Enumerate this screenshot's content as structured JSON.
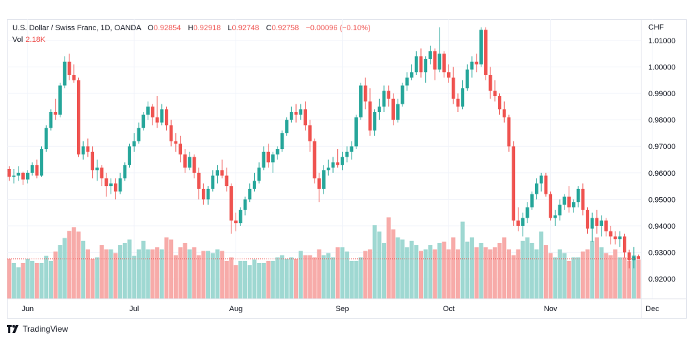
{
  "legend": {
    "symbol": "U.S. Dollar / Swiss Franc, 1D, OANDA",
    "o_label": "O",
    "o_value": "0.92854",
    "h_label": "H",
    "h_value": "0.92918",
    "l_label": "L",
    "l_value": "0.92748",
    "c_label": "C",
    "c_value": "0.92758",
    "change": "−0.00096 (−0.10%)",
    "vol_label": "Vol",
    "vol_value": "2.18K"
  },
  "currency": "CHF",
  "brand": "TradingView",
  "colors": {
    "up": "#26a69a",
    "down": "#ef5350",
    "up_vol": "#9fd8d2",
    "down_vol": "#f7aba9",
    "grid": "#f0f3fa"
  },
  "chart_data": {
    "type": "candlestick",
    "y_ticks": [
      "0.92000",
      "0.93000",
      "0.94000",
      "0.95000",
      "0.96000",
      "0.97000",
      "0.98000",
      "0.99000",
      "1.00000",
      "1.01000"
    ],
    "ylim": [
      0.9125,
      1.0175
    ],
    "x_ticks": [
      "Jun",
      "Jul",
      "Aug",
      "Sep",
      "Oct",
      "Nov",
      "Dec"
    ],
    "x_tick_index": [
      4,
      27,
      49,
      72,
      95,
      117,
      139
    ],
    "last_close": 0.92758,
    "ohlc": [
      [
        0.9615,
        0.9625,
        0.957,
        0.9585
      ],
      [
        0.9585,
        0.9615,
        0.956,
        0.959
      ],
      [
        0.959,
        0.9625,
        0.957,
        0.96
      ],
      [
        0.96,
        0.9605,
        0.9555,
        0.9575
      ],
      [
        0.9575,
        0.961,
        0.956,
        0.96
      ],
      [
        0.96,
        0.964,
        0.959,
        0.963
      ],
      [
        0.963,
        0.965,
        0.958,
        0.959
      ],
      [
        0.959,
        0.97,
        0.9585,
        0.969
      ],
      [
        0.969,
        0.978,
        0.968,
        0.977
      ],
      [
        0.977,
        0.984,
        0.976,
        0.983
      ],
      [
        0.983,
        0.988,
        0.98,
        0.982
      ],
      [
        0.982,
        0.994,
        0.981,
        0.993
      ],
      [
        0.993,
        1.004,
        0.992,
        1.002
      ],
      [
        1.002,
        1.005,
        0.995,
        0.997
      ],
      [
        0.997,
        1.001,
        0.994,
        0.995
      ],
      [
        0.995,
        0.996,
        0.966,
        0.967
      ],
      [
        0.967,
        0.972,
        0.965,
        0.97
      ],
      [
        0.97,
        0.973,
        0.966,
        0.968
      ],
      [
        0.968,
        0.97,
        0.958,
        0.961
      ],
      [
        0.961,
        0.965,
        0.957,
        0.962
      ],
      [
        0.962,
        0.963,
        0.955,
        0.958
      ],
      [
        0.958,
        0.96,
        0.951,
        0.955
      ],
      [
        0.955,
        0.958,
        0.952,
        0.956
      ],
      [
        0.956,
        0.958,
        0.95,
        0.953
      ],
      [
        0.953,
        0.96,
        0.952,
        0.958
      ],
      [
        0.958,
        0.964,
        0.957,
        0.963
      ],
      [
        0.963,
        0.971,
        0.962,
        0.97
      ],
      [
        0.97,
        0.975,
        0.968,
        0.972
      ],
      [
        0.972,
        0.979,
        0.971,
        0.977
      ],
      [
        0.977,
        0.983,
        0.976,
        0.982
      ],
      [
        0.982,
        0.987,
        0.98,
        0.985
      ],
      [
        0.985,
        0.986,
        0.978,
        0.981
      ],
      [
        0.981,
        0.989,
        0.977,
        0.979
      ],
      [
        0.979,
        0.986,
        0.978,
        0.984
      ],
      [
        0.984,
        0.985,
        0.976,
        0.978
      ],
      [
        0.978,
        0.98,
        0.97,
        0.972
      ],
      [
        0.972,
        0.975,
        0.968,
        0.971
      ],
      [
        0.971,
        0.974,
        0.964,
        0.967
      ],
      [
        0.967,
        0.969,
        0.96,
        0.962
      ],
      [
        0.962,
        0.968,
        0.961,
        0.966
      ],
      [
        0.966,
        0.967,
        0.958,
        0.96
      ],
      [
        0.96,
        0.962,
        0.95,
        0.954
      ],
      [
        0.954,
        0.956,
        0.948,
        0.95
      ],
      [
        0.95,
        0.955,
        0.948,
        0.954
      ],
      [
        0.954,
        0.961,
        0.953,
        0.959
      ],
      [
        0.959,
        0.963,
        0.956,
        0.961
      ],
      [
        0.961,
        0.965,
        0.958,
        0.959
      ],
      [
        0.959,
        0.962,
        0.953,
        0.955
      ],
      [
        0.955,
        0.956,
        0.937,
        0.942
      ],
      [
        0.942,
        0.945,
        0.938,
        0.941
      ],
      [
        0.941,
        0.947,
        0.94,
        0.946
      ],
      [
        0.946,
        0.951,
        0.944,
        0.95
      ],
      [
        0.95,
        0.956,
        0.949,
        0.954
      ],
      [
        0.954,
        0.96,
        0.953,
        0.957
      ],
      [
        0.957,
        0.964,
        0.956,
        0.962
      ],
      [
        0.962,
        0.97,
        0.961,
        0.968
      ],
      [
        0.968,
        0.971,
        0.962,
        0.964
      ],
      [
        0.964,
        0.968,
        0.96,
        0.967
      ],
      [
        0.967,
        0.97,
        0.965,
        0.969
      ],
      [
        0.969,
        0.976,
        0.968,
        0.975
      ],
      [
        0.975,
        0.981,
        0.974,
        0.98
      ],
      [
        0.98,
        0.985,
        0.979,
        0.983
      ],
      [
        0.983,
        0.986,
        0.979,
        0.982
      ],
      [
        0.982,
        0.986,
        0.98,
        0.984
      ],
      [
        0.984,
        0.987,
        0.976,
        0.978
      ],
      [
        0.978,
        0.98,
        0.968,
        0.972
      ],
      [
        0.972,
        0.973,
        0.956,
        0.958
      ],
      [
        0.958,
        0.96,
        0.949,
        0.954
      ],
      [
        0.954,
        0.963,
        0.952,
        0.961
      ],
      [
        0.961,
        0.965,
        0.959,
        0.962
      ],
      [
        0.962,
        0.966,
        0.96,
        0.964
      ],
      [
        0.964,
        0.969,
        0.962,
        0.963
      ],
      [
        0.963,
        0.968,
        0.961,
        0.966
      ],
      [
        0.966,
        0.97,
        0.964,
        0.968
      ],
      [
        0.968,
        0.972,
        0.965,
        0.97
      ],
      [
        0.97,
        0.982,
        0.969,
        0.981
      ],
      [
        0.981,
        0.994,
        0.98,
        0.993
      ],
      [
        0.993,
        0.996,
        0.984,
        0.987
      ],
      [
        0.987,
        0.992,
        0.974,
        0.976
      ],
      [
        0.976,
        0.984,
        0.974,
        0.983
      ],
      [
        0.983,
        0.988,
        0.98,
        0.985
      ],
      [
        0.985,
        0.993,
        0.983,
        0.991
      ],
      [
        0.991,
        0.993,
        0.985,
        0.988
      ],
      [
        0.988,
        0.99,
        0.978,
        0.98
      ],
      [
        0.98,
        0.988,
        0.979,
        0.986
      ],
      [
        0.986,
        0.994,
        0.985,
        0.993
      ],
      [
        0.993,
        0.998,
        0.991,
        0.996
      ],
      [
        0.996,
        1.001,
        0.995,
        0.998
      ],
      [
        0.998,
        1.006,
        0.997,
        1.004
      ],
      [
        1.004,
        1.007,
        0.996,
        0.998
      ],
      [
        0.998,
        1.004,
        0.994,
        1.003
      ],
      [
        1.003,
        1.008,
        1.001,
        1.006
      ],
      [
        1.006,
        1.007,
        0.995,
        0.999
      ],
      [
        0.999,
        1.015,
        0.998,
        1.005
      ],
      [
        1.005,
        1.006,
        0.996,
        0.998
      ],
      [
        0.998,
        1.001,
        0.994,
        0.996
      ],
      [
        0.996,
        1.0,
        0.986,
        0.988
      ],
      [
        0.988,
        0.99,
        0.983,
        0.985
      ],
      [
        0.985,
        0.995,
        0.984,
        0.992
      ],
      [
        0.992,
        1.001,
        0.991,
        0.999
      ],
      [
        0.999,
        1.004,
        0.996,
        1.002
      ],
      [
        1.002,
        1.005,
        0.998,
        1.001
      ],
      [
        1.001,
        1.015,
        1.0,
        1.014
      ],
      [
        1.014,
        1.015,
        0.995,
        0.997
      ],
      [
        0.997,
        1.0,
        0.988,
        0.991
      ],
      [
        0.991,
        0.995,
        0.987,
        0.989
      ],
      [
        0.989,
        0.99,
        0.982,
        0.984
      ],
      [
        0.984,
        0.987,
        0.979,
        0.981
      ],
      [
        0.981,
        0.982,
        0.968,
        0.97
      ],
      [
        0.97,
        0.972,
        0.94,
        0.942
      ],
      [
        0.942,
        0.947,
        0.938,
        0.94
      ],
      [
        0.94,
        0.945,
        0.936,
        0.943
      ],
      [
        0.943,
        0.949,
        0.941,
        0.947
      ],
      [
        0.947,
        0.953,
        0.946,
        0.952
      ],
      [
        0.952,
        0.958,
        0.95,
        0.956
      ],
      [
        0.956,
        0.96,
        0.953,
        0.959
      ],
      [
        0.959,
        0.96,
        0.951,
        0.952
      ],
      [
        0.952,
        0.953,
        0.942,
        0.943
      ],
      [
        0.943,
        0.946,
        0.94,
        0.944
      ],
      [
        0.944,
        0.95,
        0.942,
        0.948
      ],
      [
        0.948,
        0.952,
        0.946,
        0.951
      ],
      [
        0.951,
        0.955,
        0.945,
        0.947
      ],
      [
        0.947,
        0.95,
        0.945,
        0.949
      ],
      [
        0.949,
        0.955,
        0.947,
        0.954
      ],
      [
        0.954,
        0.956,
        0.944,
        0.946
      ],
      [
        0.946,
        0.947,
        0.937,
        0.939
      ],
      [
        0.939,
        0.945,
        0.934,
        0.943
      ],
      [
        0.943,
        0.946,
        0.937,
        0.94
      ],
      [
        0.94,
        0.944,
        0.936,
        0.942
      ],
      [
        0.942,
        0.943,
        0.936,
        0.938
      ],
      [
        0.938,
        0.94,
        0.933,
        0.936
      ],
      [
        0.936,
        0.938,
        0.933,
        0.935
      ],
      [
        0.935,
        0.938,
        0.932,
        0.936
      ],
      [
        0.936,
        0.937,
        0.928,
        0.93
      ],
      [
        0.93,
        0.931,
        0.924,
        0.927
      ],
      [
        0.927,
        0.932,
        0.924,
        0.9285
      ],
      [
        0.92854,
        0.92918,
        0.92748,
        0.92758
      ]
    ],
    "volume_rel": [
      0.56,
      0.5,
      0.44,
      0.5,
      0.56,
      0.53,
      0.5,
      0.5,
      0.6,
      0.53,
      0.66,
      0.75,
      0.85,
      0.95,
      1.0,
      0.94,
      0.81,
      0.69,
      0.56,
      0.58,
      0.75,
      0.69,
      0.69,
      0.64,
      0.75,
      0.78,
      0.83,
      0.6,
      0.69,
      0.81,
      0.69,
      0.69,
      0.72,
      0.69,
      0.86,
      0.83,
      0.61,
      0.72,
      0.78,
      0.69,
      0.72,
      0.61,
      0.67,
      0.67,
      0.64,
      0.69,
      0.67,
      0.53,
      0.58,
      0.47,
      0.53,
      0.53,
      0.47,
      0.55,
      0.5,
      0.5,
      0.53,
      0.53,
      0.58,
      0.61,
      0.56,
      0.58,
      0.56,
      0.67,
      0.61,
      0.61,
      0.58,
      0.69,
      0.61,
      0.64,
      0.58,
      0.72,
      0.72,
      0.66,
      0.53,
      0.53,
      0.58,
      0.67,
      0.69,
      1.03,
      0.94,
      0.78,
      1.14,
      0.97,
      0.86,
      0.83,
      0.72,
      0.81,
      0.75,
      0.67,
      0.69,
      0.75,
      0.69,
      0.78,
      0.8,
      0.69,
      0.86,
      0.69,
      1.08,
      0.8,
      0.86,
      0.72,
      0.78,
      0.72,
      0.69,
      0.72,
      0.78,
      0.86,
      0.69,
      0.61,
      0.69,
      0.81,
      0.86,
      0.78,
      0.69,
      0.94,
      0.75,
      0.64,
      0.58,
      0.69,
      0.64,
      0.53,
      0.58,
      0.58,
      0.66,
      0.69,
      0.81,
      0.86,
      0.72,
      0.64,
      0.61,
      0.69,
      0.58,
      0.58,
      0.53,
      0.61,
      0.55,
      0.5,
      0.44,
      0.58,
      0.78
    ]
  }
}
